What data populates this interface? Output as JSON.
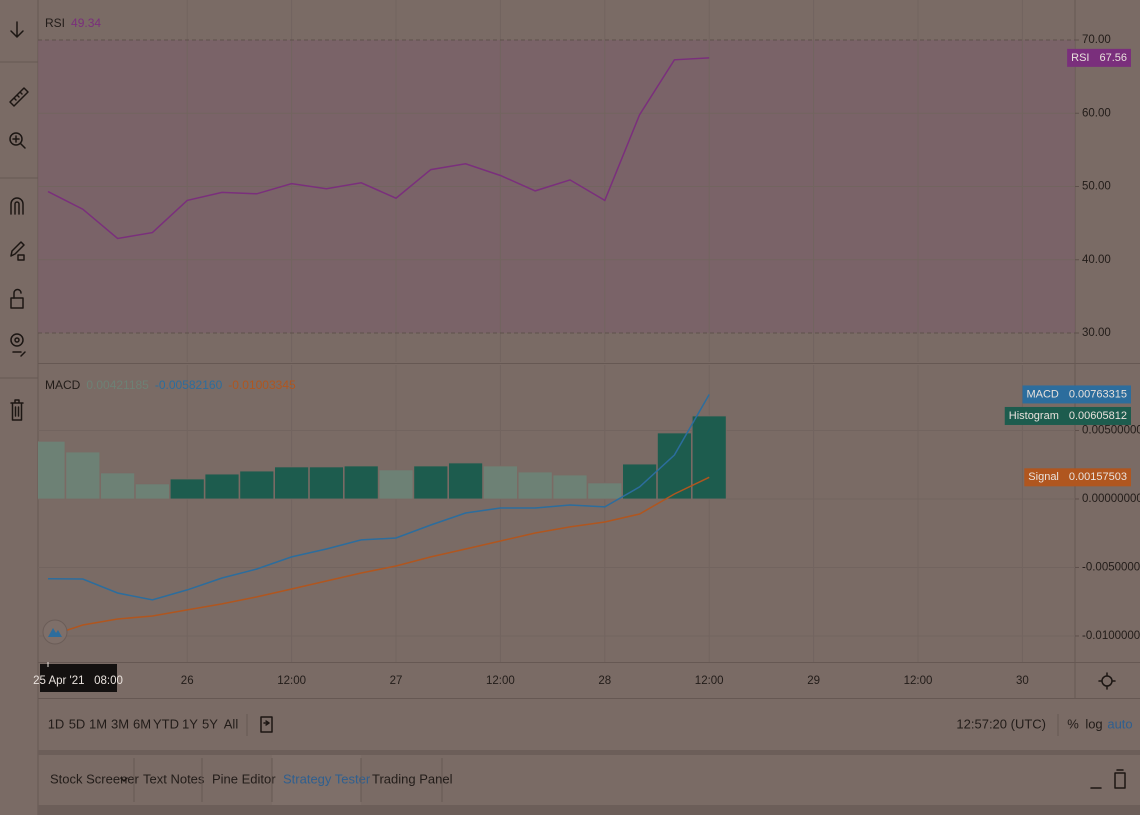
{
  "chart_data": [
    {
      "type": "line",
      "title": "RSI",
      "legend_value": "49.34",
      "values": [
        49.3,
        46.9,
        42.9,
        43.7,
        48.1,
        49.2,
        49.0,
        50.4,
        49.7,
        50.5,
        48.4,
        52.3,
        53.1,
        51.5,
        49.4,
        50.9,
        48.1,
        59.8,
        67.3,
        67.56
      ],
      "color": "#7a2f7c",
      "band_fill": "#7b5f69",
      "ylim": [
        26.04,
        75.46
      ],
      "yticks": [
        {
          "value": 30,
          "label": "30.00"
        },
        {
          "value": 40,
          "label": "40.00"
        },
        {
          "value": 50,
          "label": "50.00"
        },
        {
          "value": 60,
          "label": "60.00"
        },
        {
          "value": 70,
          "label": "70.00"
        }
      ],
      "tag": {
        "name": "RSI",
        "value": "67.56"
      }
    },
    {
      "type": "macd",
      "title": "MACD",
      "legend_values": [
        "0.00421185",
        "-0.00582160",
        "-0.01003345"
      ],
      "histogram": {
        "name": "Histogram",
        "values": [
          0.00421,
          0.00343,
          0.0019,
          0.0011,
          0.00146,
          0.00182,
          0.00204,
          0.00234,
          0.00234,
          0.00241,
          0.00212,
          0.00241,
          0.00263,
          0.00241,
          0.00197,
          0.00175,
          0.00117,
          0.00255,
          0.00482,
          0.00606
        ],
        "colors": [
          "#6d8175",
          "#6d8175",
          "#6d8175",
          "#6d8175",
          "#1d5c4e",
          "#1d5c4e",
          "#1d5c4e",
          "#1d5c4e",
          "#1d5c4e",
          "#1d5c4e",
          "#6d8175",
          "#1d5c4e",
          "#1d5c4e",
          "#6d8175",
          "#6d8175",
          "#6d8175",
          "#6d8175",
          "#1d5c4e",
          "#1d5c4e",
          "#1d5c4e"
        ],
        "tag": "0.00605812"
      },
      "series": [
        {
          "name": "MACD",
          "color": "#2c6d9d",
          "values": [
            -0.00582,
            -0.00584,
            -0.00686,
            -0.00737,
            -0.00664,
            -0.00577,
            -0.00511,
            -0.00423,
            -0.00365,
            -0.00299,
            -0.00285,
            -0.0019,
            -0.00102,
            -0.00066,
            -0.00066,
            -0.00044,
            -0.00058,
            0.00088,
            0.00321,
            0.00763
          ],
          "tag": "0.00763315"
        },
        {
          "name": "Signal",
          "color": "#b0561f",
          "values": [
            -0.01003,
            -0.0092,
            -0.00876,
            -0.00854,
            -0.0081,
            -0.00766,
            -0.00715,
            -0.00657,
            -0.00599,
            -0.0054,
            -0.00489,
            -0.00423,
            -0.00365,
            -0.00307,
            -0.00248,
            -0.00204,
            -0.00168,
            -0.0011,
            0.00036,
            0.00158
          ],
          "tag": "0.00157503"
        }
      ],
      "ylim": [
        -0.0119,
        0.00978
      ],
      "yticks": [
        {
          "value": -0.01,
          "label": "-0.01000000"
        },
        {
          "value": -0.005,
          "label": "-0.00500000"
        },
        {
          "value": 0,
          "label": "0.00000000"
        },
        {
          "value": 0.005,
          "label": "0.00500000"
        }
      ]
    }
  ],
  "time_axis": {
    "cursor_label": "25 Apr '21   08:00",
    "labels": [
      "26",
      "12:00",
      "27",
      "12:00",
      "28",
      "12:00",
      "29",
      "12:00",
      "30"
    ]
  },
  "bottom_bar": {
    "ranges": [
      "1D",
      "5D",
      "1M",
      "3M",
      "6M",
      "YTD",
      "1Y",
      "5Y",
      "All"
    ],
    "clock": "12:57:20 (UTC)",
    "percent": "%",
    "log": "log",
    "auto": "auto"
  },
  "tabs": [
    "Stock Screener",
    "Text Notes",
    "Pine Editor",
    "Strategy Tester",
    "Trading Panel"
  ]
}
